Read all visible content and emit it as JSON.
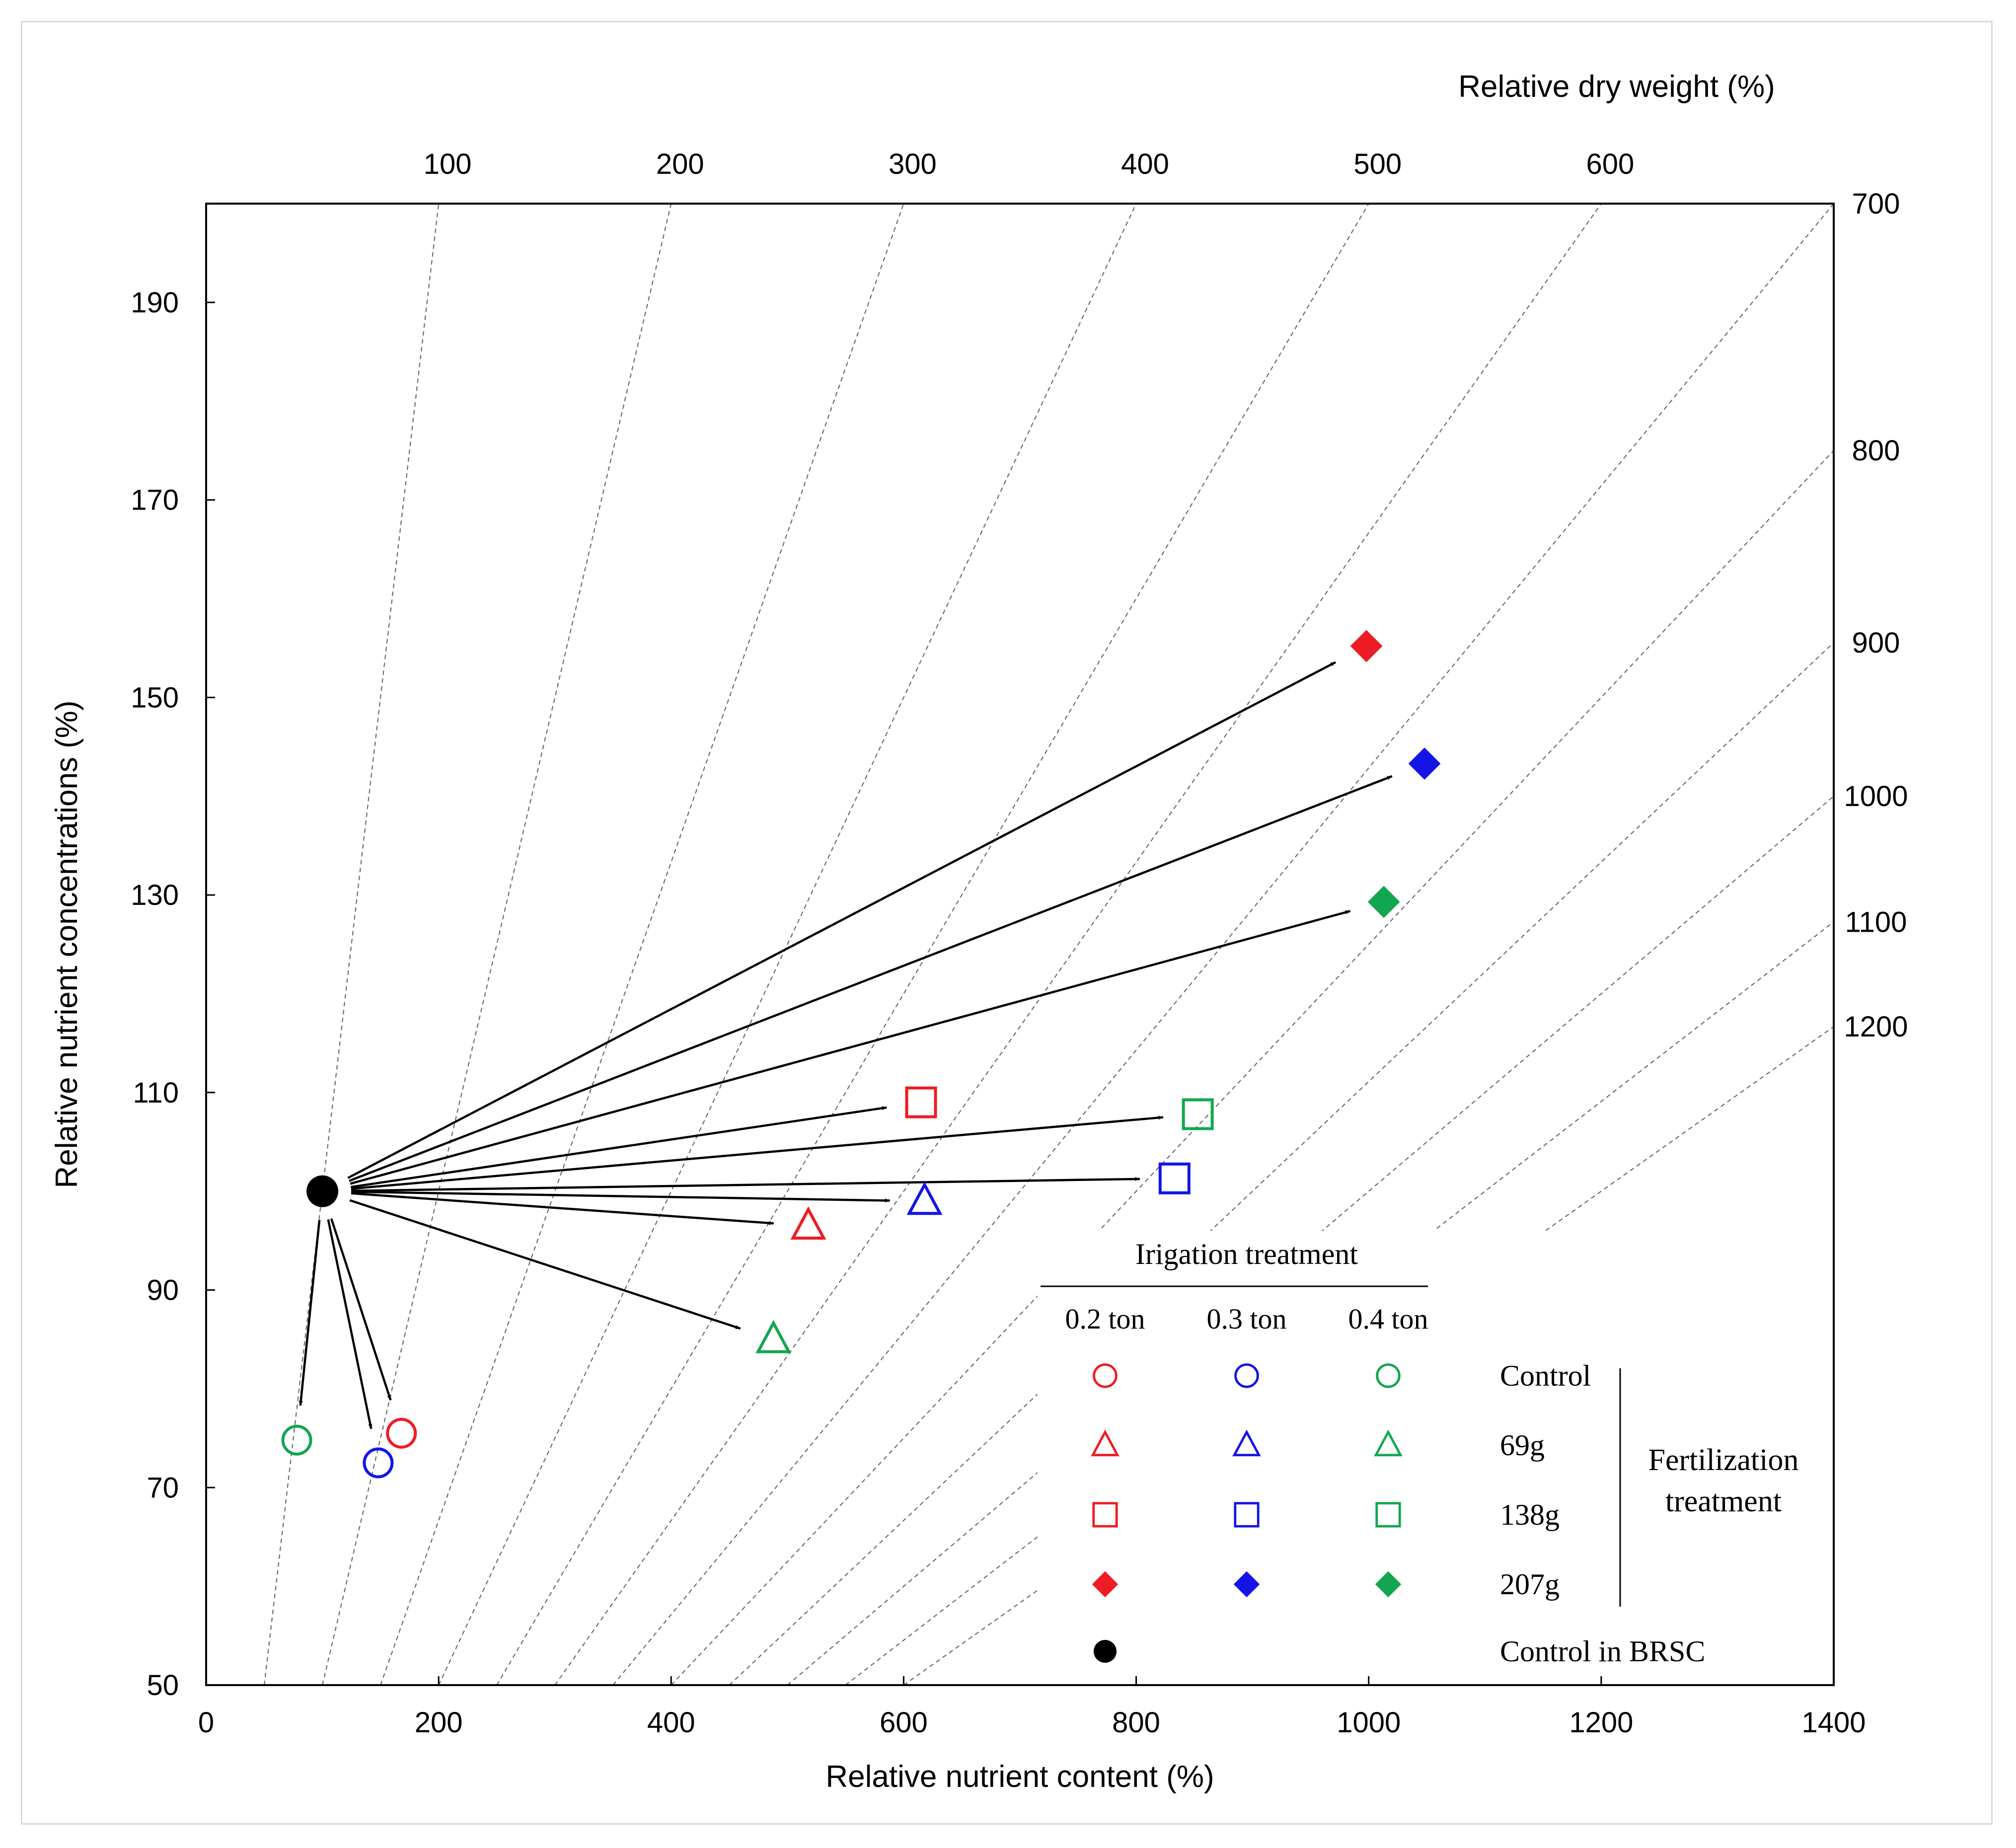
{
  "chart_data": {
    "type": "scatter",
    "subtype": "vector-nomogram",
    "xlabel": "Relative nutrient content (%)",
    "ylabel": "Relative nutrient concentrations (%)",
    "toplabel": "Relative dry weight (%)",
    "xlim": [
      0,
      1400
    ],
    "ylim": [
      50,
      200
    ],
    "xticks": [
      0,
      200,
      400,
      600,
      800,
      1000,
      1200,
      1400
    ],
    "yticks": [
      50,
      70,
      90,
      110,
      130,
      150,
      170,
      190
    ],
    "dry_weight_lines": [
      100,
      200,
      300,
      400,
      500,
      600,
      700,
      800,
      900,
      1000,
      1100,
      1200
    ],
    "grid": false,
    "reference": {
      "name": "Control in BRSC",
      "x": 100,
      "y": 100,
      "color": "#000000"
    },
    "points": [
      {
        "irrigation": "0.2 ton",
        "fertilization": "Control",
        "x": 168,
        "y": 75.5
      },
      {
        "irrigation": "0.3 ton",
        "fertilization": "Control",
        "x": 148,
        "y": 72.5
      },
      {
        "irrigation": "0.4 ton",
        "fertilization": "Control",
        "x": 78,
        "y": 74.8
      },
      {
        "irrigation": "0.2 ton",
        "fertilization": "69g",
        "x": 518,
        "y": 96.5
      },
      {
        "irrigation": "0.3 ton",
        "fertilization": "69g",
        "x": 618,
        "y": 99
      },
      {
        "irrigation": "0.4 ton",
        "fertilization": "69g",
        "x": 488,
        "y": 85
      },
      {
        "irrigation": "0.2 ton",
        "fertilization": "138g",
        "x": 615,
        "y": 109
      },
      {
        "irrigation": "0.3 ton",
        "fertilization": "138g",
        "x": 833,
        "y": 101.3
      },
      {
        "irrigation": "0.4 ton",
        "fertilization": "138g",
        "x": 853,
        "y": 107.8
      },
      {
        "irrigation": "0.2 ton",
        "fertilization": "207g",
        "x": 998,
        "y": 155.2
      },
      {
        "irrigation": "0.3 ton",
        "fertilization": "207g",
        "x": 1048,
        "y": 143.3
      },
      {
        "irrigation": "0.4 ton",
        "fertilization": "207g",
        "x": 1013,
        "y": 129.3
      }
    ],
    "legend": {
      "irrigation_title": "Irigation treatment",
      "irrigation_levels": [
        "0.2 ton",
        "0.3 ton",
        "0.4 ton"
      ],
      "fertilization_title_line1": "Fertilization",
      "fertilization_title_line2": "treatment",
      "fertilization_levels": [
        "Control",
        "69g",
        "138g",
        "207g"
      ],
      "reference_label": "Control in BRSC",
      "placement": "bottom-right"
    },
    "colors": {
      "0.2 ton": "#ee1c24",
      "0.3 ton": "#1414e6",
      "0.4 ton": "#12a650"
    },
    "shapes": {
      "Control": "open-circle",
      "69g": "open-triangle",
      "138g": "open-square",
      "207g": "filled-diamond"
    }
  }
}
